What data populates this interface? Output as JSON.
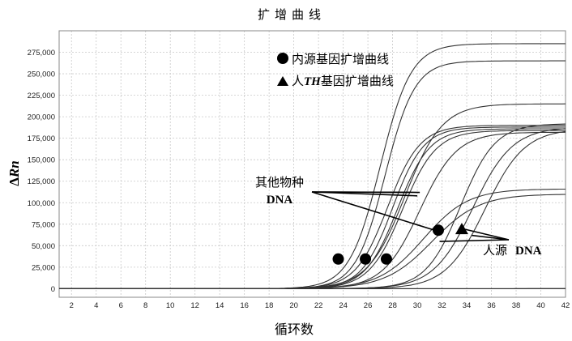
{
  "chart_data": {
    "type": "line",
    "title": "扩增曲线",
    "xlabel": "循环数",
    "ylabel_prefix": "Δ",
    "ylabel_italic": "Rn",
    "xlim": [
      1,
      42
    ],
    "ylim": [
      -10000,
      300000
    ],
    "x_ticks": [
      2,
      4,
      6,
      8,
      10,
      12,
      14,
      16,
      18,
      20,
      22,
      24,
      26,
      28,
      30,
      32,
      34,
      36,
      38,
      40,
      42
    ],
    "y_ticks": [
      0,
      25000,
      50000,
      75000,
      100000,
      125000,
      150000,
      175000,
      200000,
      225000,
      250000,
      275000
    ],
    "y_tick_labels": [
      "0",
      "25,000",
      "50,000",
      "75,000",
      "100,000",
      "125,000",
      "150,000",
      "175,000",
      "200,000",
      "225,000",
      "250,000",
      "275,000"
    ],
    "grid": true,
    "legend": {
      "placement": "top-center",
      "entries": [
        {
          "symbol": "circle",
          "text": "内源基因扩增曲线"
        },
        {
          "symbol": "triangle",
          "text_before": "人",
          "text_italic": "TH",
          "text_after": "基因扩增曲线"
        }
      ]
    },
    "series": [
      {
        "plateau": 285000,
        "ct": 27.0,
        "slope": 1.25
      },
      {
        "plateau": 265000,
        "ct": 27.4,
        "slope": 1.2
      },
      {
        "plateau": 215000,
        "ct": 29.0,
        "slope": 1.5
      },
      {
        "plateau": 190000,
        "ct": 27.6,
        "slope": 1.3
      },
      {
        "plateau": 188000,
        "ct": 28.0,
        "slope": 1.25
      },
      {
        "plateau": 186000,
        "ct": 28.4,
        "slope": 1.3
      },
      {
        "plateau": 184000,
        "ct": 28.8,
        "slope": 1.35
      },
      {
        "plateau": 182000,
        "ct": 30.2,
        "slope": 1.5
      },
      {
        "plateau": 192000,
        "ct": 33.5,
        "slope": 1.4
      },
      {
        "plateau": 188000,
        "ct": 34.5,
        "slope": 1.6
      },
      {
        "plateau": 186000,
        "ct": 35.5,
        "slope": 1.6
      },
      {
        "plateau": 116000,
        "ct": 30.5,
        "slope": 1.8
      },
      {
        "plateau": 110000,
        "ct": 31.2,
        "slope": 1.9
      },
      {
        "plateau": 2000,
        "ct": 50.0,
        "slope": 3.0
      },
      {
        "plateau": 1500,
        "ct": 50.0,
        "slope": 3.0
      }
    ],
    "markers": [
      {
        "shape": "circle",
        "x": 23.6,
        "y": 34500
      },
      {
        "shape": "circle",
        "x": 25.8,
        "y": 34500
      },
      {
        "shape": "circle",
        "x": 27.5,
        "y": 34500
      },
      {
        "shape": "circle",
        "x": 31.7,
        "y": 68000
      },
      {
        "shape": "triangle",
        "x": 33.6,
        "y": 69000
      }
    ],
    "annotations": [
      {
        "name": "other-species",
        "text_line1": "其他物种",
        "text_line2": "DNA"
      },
      {
        "name": "human-source",
        "text_line1": "人源",
        "text_line2": "DNA"
      }
    ]
  }
}
